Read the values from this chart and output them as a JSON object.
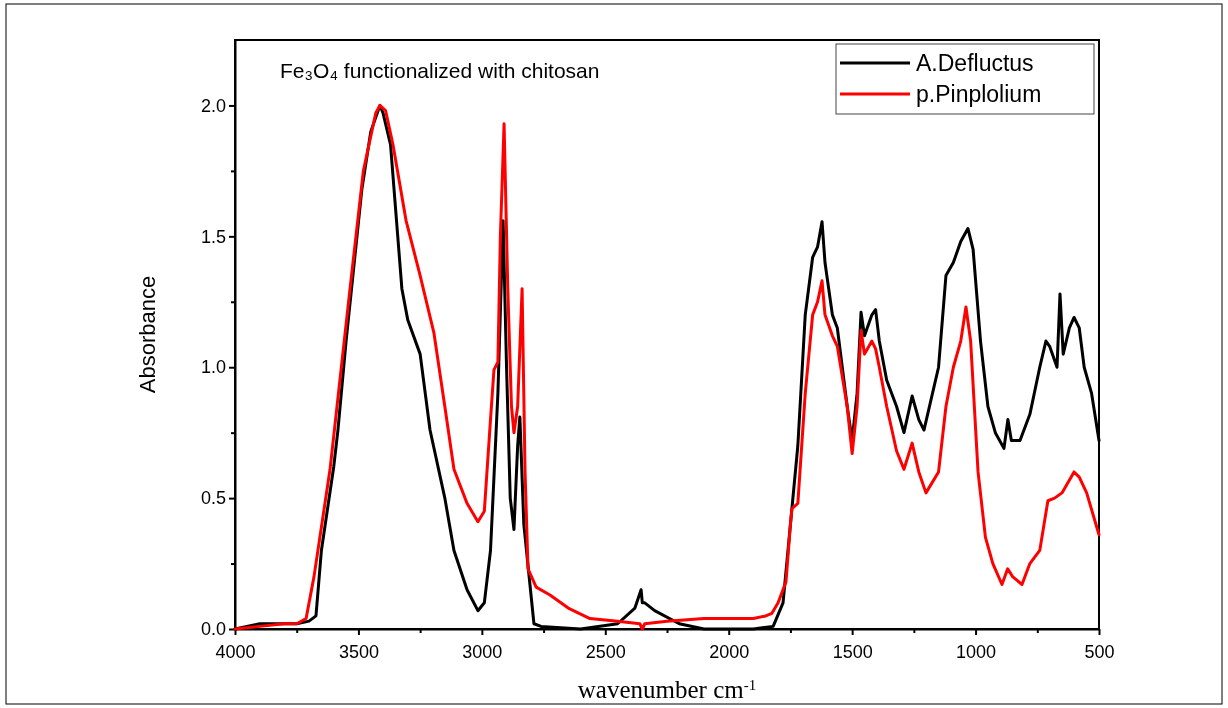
{
  "chart_data": {
    "type": "line",
    "title": "Fe₃O₄ functionalized with chitosan",
    "xlabel": "wavenumber cm$^{-1}$",
    "ylabel": "Absorbance",
    "xlim": [
      4000,
      500
    ],
    "ylim": [
      0,
      2.25
    ],
    "xticks": [
      4000,
      {
        "value": 3750,
        "label": null
      },
      3500,
      {
        "value": 3250,
        "label": null
      },
      3000,
      {
        "value": 2750,
        "label": null
      },
      2500,
      {
        "value": 2250,
        "label": null
      },
      2000,
      {
        "value": 1750,
        "label": null
      },
      1500,
      {
        "value": 1250,
        "label": null
      },
      1000,
      {
        "value": 750,
        "label": null
      },
      500
    ],
    "yticks": [
      {
        "value": 0,
        "label": "0.0"
      },
      {
        "value": 0.25,
        "label": null
      },
      {
        "value": 0.5,
        "label": "0.5"
      },
      {
        "value": 0.75,
        "label": null
      },
      {
        "value": 1,
        "label": "1.0"
      },
      {
        "value": 1.25,
        "label": null
      },
      {
        "value": 1.5,
        "label": "1.5"
      },
      {
        "value": 1.75,
        "label": null
      },
      {
        "value": 2,
        "label": "2.0"
      }
    ],
    "grid": false,
    "legend": "top right",
    "line_style": "solid",
    "marker": "none",
    "series": [
      {
        "name": "A.Defluctus",
        "color": "#000000",
        "x": [
          4000,
          3900,
          3800,
          3750,
          3700,
          3672,
          3650,
          3600,
          3583,
          3550,
          3486,
          3450,
          3413,
          3400,
          3370,
          3324,
          3300,
          3250,
          3210,
          3150,
          3113,
          3060,
          3016,
          2990,
          2965,
          2951,
          2935,
          2914,
          2900,
          2885,
          2870,
          2855,
          2846,
          2830,
          2789,
          2760,
          2600,
          2450,
          2380,
          2355,
          2350,
          2340,
          2300,
          2200,
          2100,
          1900,
          1820,
          1780,
          1750,
          1720,
          1690,
          1660,
          1640,
          1622,
          1610,
          1580,
          1560,
          1520,
          1500,
          1480,
          1464,
          1450,
          1420,
          1405,
          1390,
          1360,
          1320,
          1290,
          1257,
          1230,
          1209,
          1150,
          1120,
          1090,
          1060,
          1031,
          1010,
          980,
          950,
          920,
          885,
          869,
          855,
          820,
          780,
          740,
          715,
          700,
          670,
          658,
          645,
          620,
          601,
          580,
          560,
          530,
          500
        ],
        "values": [
          0.0,
          0.02,
          0.02,
          0.02,
          0.03,
          0.05,
          0.3,
          0.62,
          0.76,
          1.1,
          1.68,
          1.9,
          2.0,
          1.97,
          1.85,
          1.3,
          1.18,
          1.05,
          0.76,
          0.5,
          0.3,
          0.15,
          0.07,
          0.1,
          0.3,
          0.58,
          0.9,
          1.56,
          1.0,
          0.5,
          0.38,
          0.7,
          0.81,
          0.4,
          0.02,
          0.01,
          0.0,
          0.02,
          0.08,
          0.15,
          0.1,
          0.1,
          0.07,
          0.02,
          0.0,
          0.0,
          0.01,
          0.1,
          0.4,
          0.7,
          1.2,
          1.42,
          1.46,
          1.556,
          1.4,
          1.2,
          1.15,
          0.85,
          0.72,
          0.9,
          1.21,
          1.12,
          1.2,
          1.22,
          1.1,
          0.95,
          0.85,
          0.75,
          0.89,
          0.8,
          0.76,
          1.0,
          1.35,
          1.4,
          1.48,
          1.53,
          1.45,
          1.1,
          0.85,
          0.75,
          0.69,
          0.8,
          0.72,
          0.72,
          0.82,
          1.0,
          1.1,
          1.08,
          1.0,
          1.28,
          1.05,
          1.15,
          1.19,
          1.15,
          1.0,
          0.9,
          0.72
        ]
      },
      {
        "name": "p.Pinplolium",
        "color": "#ff0000",
        "x": [
          4000,
          3900,
          3800,
          3750,
          3712,
          3680,
          3615,
          3534,
          3480,
          3430,
          3413,
          3390,
          3360,
          3307,
          3250,
          3194,
          3150,
          3113,
          3060,
          3016,
          2990,
          2965,
          2951,
          2935,
          2925,
          2910,
          2895,
          2880,
          2870,
          2855,
          2837,
          2825,
          2813,
          2780,
          2724,
          2650,
          2562,
          2450,
          2360,
          2350,
          2340,
          2250,
          2100,
          2000,
          1900,
          1850,
          1825,
          1800,
          1768,
          1750,
          1744,
          1720,
          1690,
          1660,
          1640,
          1622,
          1610,
          1580,
          1560,
          1520,
          1500,
          1480,
          1464,
          1450,
          1420,
          1405,
          1390,
          1360,
          1320,
          1290,
          1257,
          1230,
          1201,
          1150,
          1120,
          1090,
          1060,
          1039,
          1020,
          990,
          960,
          930,
          893,
          870,
          850,
          812,
          780,
          740,
          707,
          680,
          650,
          601,
          580,
          550,
          500
        ],
        "values": [
          0.0,
          0.01,
          0.02,
          0.02,
          0.04,
          0.2,
          0.61,
          1.3,
          1.75,
          1.97,
          2.0,
          1.98,
          1.85,
          1.56,
          1.35,
          1.13,
          0.85,
          0.61,
          0.48,
          0.41,
          0.45,
          0.8,
          0.99,
          1.02,
          1.5,
          1.93,
          1.3,
          0.85,
          0.75,
          0.85,
          1.3,
          0.6,
          0.23,
          0.16,
          0.13,
          0.08,
          0.04,
          0.03,
          0.02,
          0.0,
          0.02,
          0.03,
          0.04,
          0.04,
          0.04,
          0.05,
          0.06,
          0.1,
          0.18,
          0.4,
          0.46,
          0.48,
          0.9,
          1.2,
          1.25,
          1.33,
          1.2,
          1.12,
          1.08,
          0.85,
          0.67,
          0.85,
          1.14,
          1.05,
          1.1,
          1.07,
          1.0,
          0.85,
          0.68,
          0.61,
          0.71,
          0.6,
          0.52,
          0.6,
          0.85,
          1.0,
          1.1,
          1.23,
          1.1,
          0.6,
          0.35,
          0.25,
          0.17,
          0.23,
          0.2,
          0.17,
          0.25,
          0.3,
          0.49,
          0.5,
          0.52,
          0.6,
          0.58,
          0.52,
          0.36
        ]
      }
    ]
  }
}
